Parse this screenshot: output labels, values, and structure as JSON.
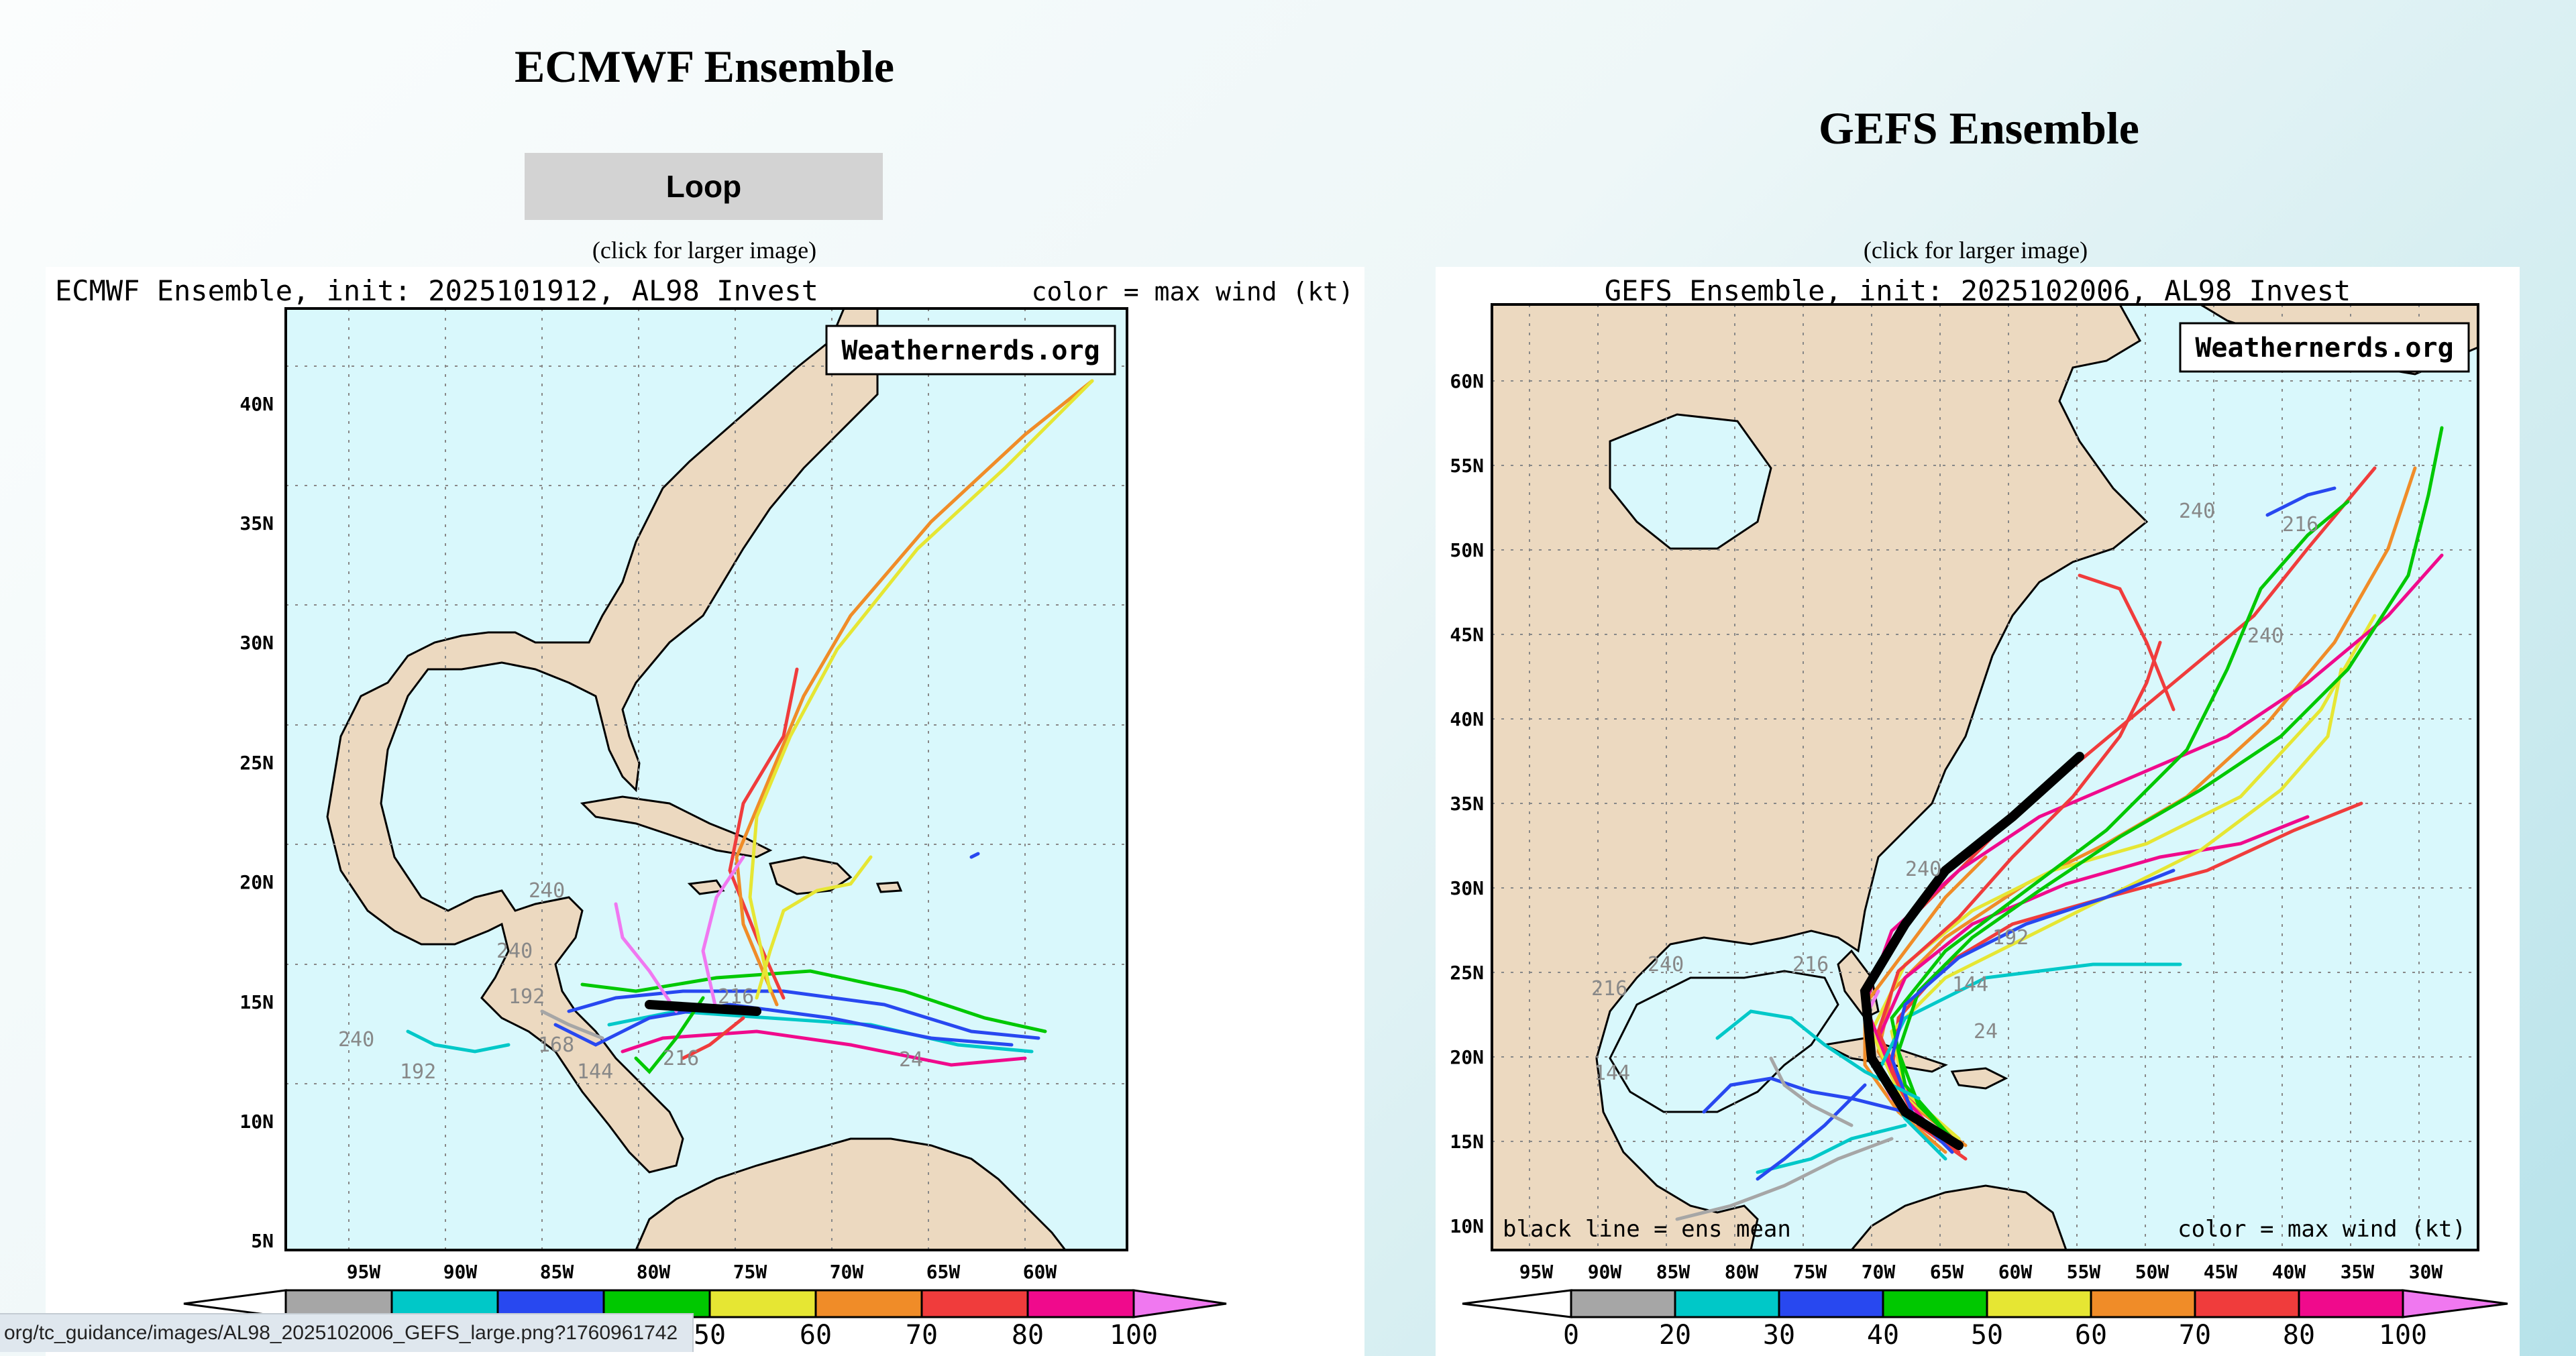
{
  "page": {
    "left_heading": "ECMWF Ensemble",
    "right_heading": "GEFS Ensemble",
    "loop_button": "Loop",
    "left_hint": "(click for larger image)",
    "right_hint": "(click for larger image)",
    "status_url": "org/tc_guidance/images/AL98_2025102006_GEFS_large.png?1760961742"
  },
  "ecmwf": {
    "title": "ECMWF Ensemble, init: 2025101912, AL98 Invest",
    "legend_note": "color = max wind (kt)",
    "watermark": "Weathernerds.org",
    "lat_labels": [
      "40N",
      "35N",
      "30N",
      "25N",
      "20N",
      "15N",
      "10N",
      "5N"
    ],
    "lon_labels": [
      "95W",
      "90W",
      "85W",
      "80W",
      "75W",
      "70W",
      "65W",
      "60W"
    ],
    "hour_labels": [
      "240",
      "240",
      "192",
      "168",
      "216",
      "192",
      "240",
      "24",
      "144",
      "216"
    ],
    "scale_values": [
      "50",
      "60",
      "70",
      "80",
      "100"
    ]
  },
  "gefs": {
    "title": "GEFS Ensemble, init: 2025102006, AL98 Invest",
    "legend_note": "color = max wind (kt)",
    "mean_note": "black line = ens mean",
    "watermark": "Weathernerds.org",
    "lat_labels": [
      "60N",
      "55N",
      "50N",
      "45N",
      "40N",
      "35N",
      "30N",
      "25N",
      "20N",
      "15N",
      "10N"
    ],
    "lon_labels": [
      "95W",
      "90W",
      "85W",
      "80W",
      "75W",
      "70W",
      "65W",
      "60W",
      "55W",
      "50W",
      "45W",
      "40W",
      "35W",
      "30W"
    ],
    "hour_labels": [
      "240",
      "216",
      "240",
      "240",
      "216",
      "240",
      "192",
      "144",
      "24",
      "216",
      "144"
    ],
    "scale_values": [
      "0",
      "20",
      "30",
      "40",
      "50",
      "60",
      "70",
      "80",
      "100"
    ]
  },
  "colors": {
    "ocean": "#d9f8fc",
    "land": "#ecd9c0",
    "wind_scale": [
      "#a6a6a6",
      "#00c8c8",
      "#2848f0",
      "#00c800",
      "#e6e633",
      "#f08c28",
      "#f03c3c",
      "#f00a8c",
      "#f078f0"
    ]
  }
}
